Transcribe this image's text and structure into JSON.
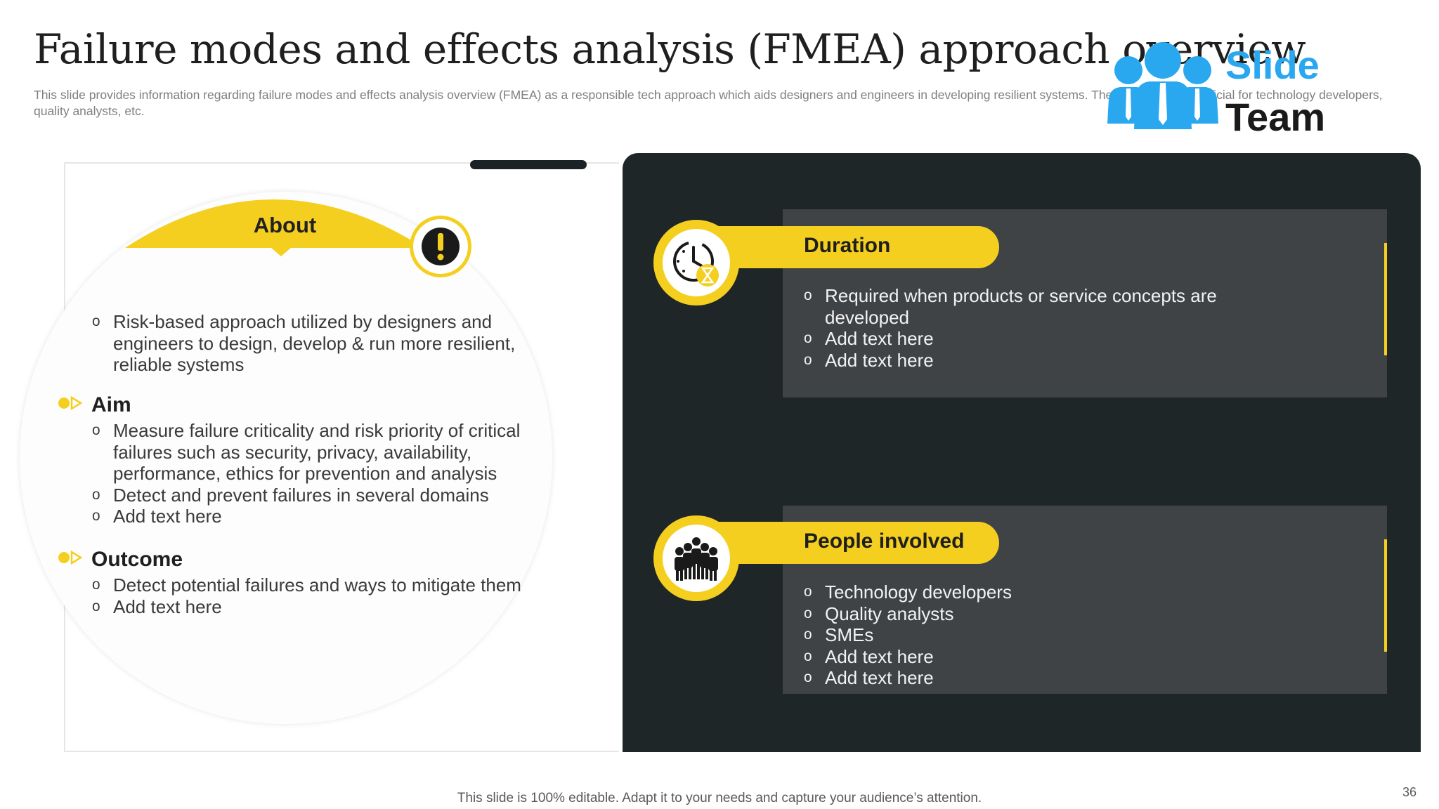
{
  "slide": {
    "title": "Failure modes and effects analysis (FMEA) approach overview",
    "subtitle": "This slide provides information regarding failure modes and effects analysis overview (FMEA)  as a responsible tech approach which aids designers and engineers in developing resilient systems. The approach is beneficial for technology developers, quality analysts, etc.",
    "footer": "This slide is 100% editable. Adapt it to your needs and capture your audience’s attention.",
    "page_number": "36"
  },
  "logo": {
    "word1": "Slide",
    "word2": "Team",
    "icon": "team-people-icon"
  },
  "left": {
    "about": {
      "label": "About",
      "icon": "exclamation-icon",
      "items": [
        "Risk-based approach utilized by designers and engineers to design, develop & run more resilient, reliable systems"
      ]
    },
    "aim": {
      "label": "Aim",
      "items": [
        "Measure failure criticality and risk priority of critical failures such as security, privacy, availability, performance, ethics for prevention and analysis",
        "Detect and prevent failures in several domains",
        "Add text here"
      ]
    },
    "outcome": {
      "label": "Outcome",
      "items": [
        "Detect potential failures and ways to mitigate them",
        "Add text here"
      ]
    }
  },
  "right": {
    "duration": {
      "label": "Duration",
      "icon": "clock-hourglass-icon",
      "items": [
        "Required when products or service concepts are developed",
        "Add text here",
        "Add text here"
      ]
    },
    "people": {
      "label": "People involved",
      "icon": "group-people-icon",
      "items": [
        "Technology developers",
        "Quality analysts",
        "SMEs",
        "Add text here",
        "Add text here"
      ]
    }
  },
  "colors": {
    "accent": "#f5cf1f",
    "dark": "#1f2628",
    "card": "#404346",
    "logo_blue": "#29a8f0"
  }
}
